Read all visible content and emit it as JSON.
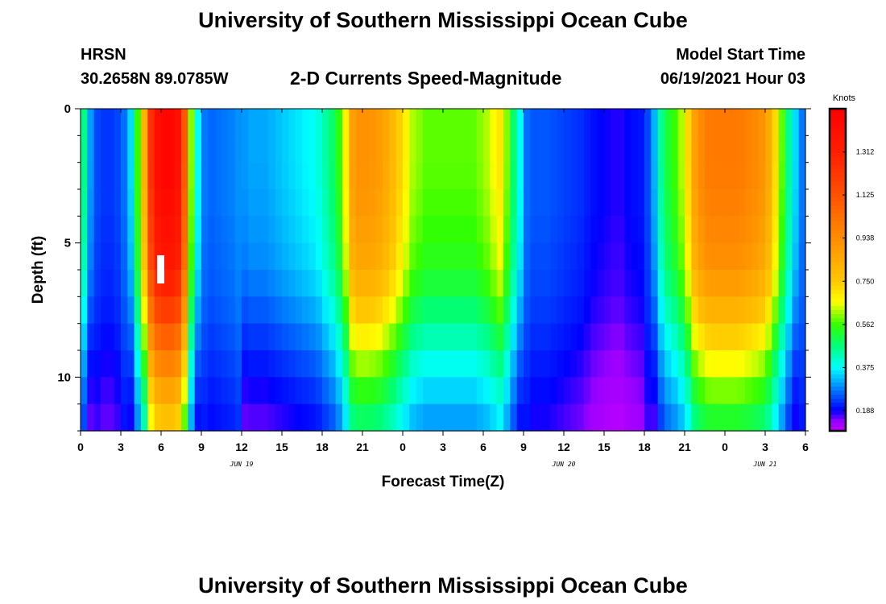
{
  "page": {
    "title_top": "University of Southern Mississippi Ocean Cube",
    "title_bottom": "University of Southern Mississippi Ocean Cube",
    "station_name": "HRSN",
    "station_coords": "30.2658N  89.0785W",
    "model_start_label": "Model Start Time",
    "model_start_value": "06/19/2021 Hour 03"
  },
  "chart_data": {
    "type": "heatmap",
    "title": "2-D Currents Speed-Magnitude",
    "xlabel": "Forecast Time(Z)",
    "ylabel": "Depth (ft)",
    "x_range_hours": [
      0,
      54
    ],
    "y_range_ft": [
      0,
      12
    ],
    "x_tick_labels": [
      "0",
      "3",
      "6",
      "9",
      "12",
      "15",
      "18",
      "21",
      "0",
      "3",
      "6",
      "9",
      "12",
      "15",
      "18",
      "21",
      "0",
      "3",
      "6"
    ],
    "y_tick_labels": [
      "0",
      "5",
      "10"
    ],
    "y_tick_values": [
      0,
      5,
      10
    ],
    "date_labels": [
      {
        "text": "JUN 19",
        "hour": 12
      },
      {
        "text": "JUN 20",
        "hour": 36
      },
      {
        "text": "JUN 21",
        "hour": 51
      }
    ],
    "colorbar": {
      "unit": "Knots",
      "min": 0.1,
      "max": 1.5,
      "tick_labels": [
        "1.312",
        "1.125",
        "0.938",
        "0.750",
        "0.562",
        "0.375",
        "0.188"
      ],
      "tick_values": [
        1.312,
        1.125,
        0.938,
        0.75,
        0.562,
        0.375,
        0.188
      ]
    },
    "grid": {
      "hours": [
        0,
        0.5,
        1,
        1.5,
        2,
        2.5,
        3,
        3.5,
        4,
        4.5,
        5,
        5.5,
        6,
        6.5,
        7,
        7.5,
        8,
        8.5,
        9,
        9.5,
        10,
        10.5,
        11,
        11.5,
        12,
        12.5,
        13,
        13.5,
        14,
        14.5,
        15,
        15.5,
        16,
        16.5,
        17,
        17.5,
        18,
        18.5,
        19,
        19.5,
        20,
        20.5,
        21,
        21.5,
        22,
        22.5,
        23,
        23.5,
        24,
        24.5,
        25,
        25.5,
        26,
        26.5,
        27,
        27.5,
        28,
        28.5,
        29,
        29.5,
        30,
        30.5,
        31,
        31.5,
        32,
        32.5,
        33,
        33.5,
        34,
        34.5,
        35,
        35.5,
        36,
        36.5,
        37,
        37.5,
        38,
        38.5,
        39,
        39.5,
        40,
        40.5,
        41,
        41.5,
        42,
        42.5,
        43,
        43.5,
        44,
        44.5,
        45,
        45.5,
        46,
        46.5,
        47,
        47.5,
        48,
        48.5,
        49,
        49.5,
        50,
        50.5,
        51,
        51.5,
        52,
        52.5,
        53,
        53.5
      ],
      "profile_depths_ft": [
        0,
        1,
        2,
        3,
        4,
        5,
        6,
        7,
        8,
        9,
        10,
        11,
        12
      ],
      "surface_speed": [
        0.46,
        0.3,
        0.2,
        0.18,
        0.18,
        0.2,
        0.25,
        0.35,
        0.56,
        0.82,
        1.25,
        1.42,
        1.46,
        1.46,
        1.4,
        1.1,
        0.6,
        0.38,
        0.26,
        0.24,
        0.25,
        0.26,
        0.27,
        0.29,
        0.3,
        0.31,
        0.31,
        0.31,
        0.32,
        0.33,
        0.34,
        0.35,
        0.36,
        0.37,
        0.38,
        0.4,
        0.44,
        0.48,
        0.55,
        0.68,
        0.88,
        0.92,
        0.92,
        0.91,
        0.89,
        0.85,
        0.8,
        0.74,
        0.68,
        0.62,
        0.6,
        0.58,
        0.58,
        0.58,
        0.58,
        0.58,
        0.58,
        0.58,
        0.58,
        0.6,
        0.62,
        0.66,
        0.7,
        0.6,
        0.48,
        0.38,
        0.25,
        0.22,
        0.22,
        0.22,
        0.21,
        0.2,
        0.19,
        0.18,
        0.17,
        0.15,
        0.13,
        0.12,
        0.11,
        0.1,
        0.1,
        0.12,
        0.13,
        0.14,
        0.2,
        0.32,
        0.45,
        0.52,
        0.56,
        0.62,
        0.72,
        0.88,
        0.95,
        0.99,
        1.0,
        1.0,
        1.0,
        1.0,
        0.99,
        0.97,
        0.95,
        0.92,
        0.85,
        0.72,
        0.58,
        0.45,
        0.35,
        0.26
      ],
      "depth_factor": [
        1.0,
        1.0,
        1.0,
        0.99,
        0.97,
        0.95,
        0.92,
        0.86,
        0.78,
        0.7,
        0.63,
        0.56,
        0.5
      ],
      "calm_bottom_speed": [
        0.3,
        0.3,
        0.3,
        0.3,
        0.29,
        0.28,
        0.27,
        0.25,
        0.22,
        0.19,
        0.16,
        0.13,
        0.11
      ]
    }
  }
}
